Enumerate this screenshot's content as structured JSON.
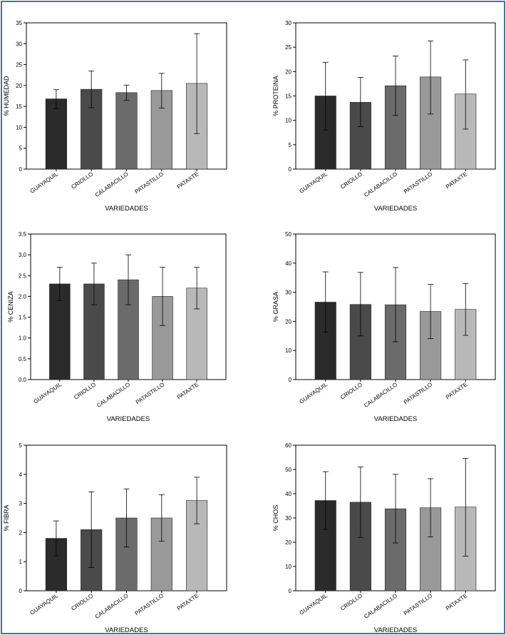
{
  "colors": [
    "#2b2b2b",
    "#4a4a4a",
    "#6b6b6b",
    "#999999",
    "#b8b8b8"
  ],
  "chart_data": [
    {
      "type": "bar",
      "categories": [
        "GUAYAQUIL",
        "CRIOLLO",
        "CALABACILLO",
        "PATASTILLO",
        "PATAXTE"
      ],
      "values": [
        16.8,
        19.1,
        18.3,
        18.8,
        20.5
      ],
      "error_low": [
        14.5,
        14.7,
        16.5,
        14.6,
        8.5
      ],
      "error_high": [
        19.0,
        23.5,
        20.1,
        22.9,
        32.4
      ],
      "xlabel": "VARIEDADES",
      "ylabel": "% HUMEDAD",
      "ylim": [
        0,
        35
      ],
      "yticks": [
        0,
        5,
        10,
        15,
        20,
        25,
        30,
        35
      ],
      "ytick_labels": [
        "0",
        "5",
        "10",
        "15",
        "20",
        "25",
        "30",
        "35"
      ]
    },
    {
      "type": "bar",
      "categories": [
        "GUAYAQUIL",
        "CRIOLLO",
        "CALABACILLO",
        "PATASTILLO",
        "PATAXTE"
      ],
      "values": [
        15.0,
        13.7,
        17.1,
        18.9,
        15.4
      ],
      "error_low": [
        8.0,
        8.7,
        11.0,
        11.3,
        8.2
      ],
      "error_high": [
        21.9,
        18.8,
        23.2,
        26.3,
        22.4
      ],
      "xlabel": "VARIEDADES",
      "ylabel": "% PROTEINA",
      "ylim": [
        0,
        30
      ],
      "yticks": [
        0,
        5,
        10,
        15,
        20,
        25,
        30
      ],
      "ytick_labels": [
        "0",
        "5",
        "10",
        "15",
        "20",
        "25",
        "30"
      ]
    },
    {
      "type": "bar",
      "categories": [
        "GUAYAQUIL",
        "CRIOLLO",
        "CALABACILLO",
        "PATASTILLO",
        "PATAXTE"
      ],
      "values": [
        2.3,
        2.3,
        2.4,
        2.0,
        2.2
      ],
      "error_low": [
        1.9,
        1.8,
        1.8,
        1.3,
        1.7
      ],
      "error_high": [
        2.7,
        2.8,
        3.0,
        2.7,
        2.7
      ],
      "xlabel": "VARIEDADES",
      "ylabel": "% CENIZA",
      "ylim": [
        0,
        3.5
      ],
      "yticks": [
        0,
        0.5,
        1.0,
        1.5,
        2.0,
        2.5,
        3.0,
        3.5
      ],
      "ytick_labels": [
        "0.0",
        "0.5",
        "1.0",
        "1.5",
        "2.0",
        "2.5",
        "3.0",
        "3.5"
      ]
    },
    {
      "type": "bar",
      "categories": [
        "GUAYAQUIL",
        "CRIOLLO",
        "CALABACILLO",
        "PATASTILLO",
        "PATAXTE"
      ],
      "values": [
        26.6,
        25.8,
        25.7,
        23.4,
        24.1
      ],
      "error_low": [
        16.3,
        15.0,
        13.0,
        14.1,
        15.2
      ],
      "error_high": [
        37.0,
        36.8,
        38.5,
        32.7,
        33.0
      ],
      "xlabel": "VARIEDADES",
      "ylabel": "% GRASA",
      "ylim": [
        0,
        50
      ],
      "yticks": [
        0,
        10,
        20,
        30,
        40,
        50
      ],
      "ytick_labels": [
        "0",
        "10",
        "20",
        "30",
        "40",
        "50"
      ]
    },
    {
      "type": "bar",
      "categories": [
        "GUAYAQUIL",
        "CRIOLLO",
        "CALABACILLO",
        "PATASTILLO",
        "PATAXTE"
      ],
      "values": [
        1.8,
        2.1,
        2.5,
        2.5,
        3.1
      ],
      "error_low": [
        1.2,
        0.8,
        1.5,
        1.7,
        2.3
      ],
      "error_high": [
        2.4,
        3.4,
        3.5,
        3.3,
        3.9
      ],
      "xlabel": "VARIEDADES",
      "ylabel": "% FIBRA",
      "ylim": [
        0,
        5
      ],
      "yticks": [
        0,
        1,
        2,
        3,
        4,
        5
      ],
      "ytick_labels": [
        "0",
        "1",
        "2",
        "3",
        "4",
        "5"
      ]
    },
    {
      "type": "bar",
      "categories": [
        "GUAYAQUIL",
        "CRIOLLO",
        "CALABACILLO",
        "PATASTILLO",
        "PATAXTE"
      ],
      "values": [
        37.2,
        36.5,
        33.8,
        34.2,
        34.5
      ],
      "error_low": [
        25.3,
        22.0,
        19.7,
        22.2,
        14.3
      ],
      "error_high": [
        49.1,
        51.0,
        48.0,
        46.2,
        54.6
      ],
      "xlabel": "VARIEDADES",
      "ylabel": "% CHOS",
      "ylim": [
        0,
        60
      ],
      "yticks": [
        0,
        10,
        20,
        30,
        40,
        50,
        60
      ],
      "ytick_labels": [
        "0",
        "10",
        "20",
        "30",
        "40",
        "50",
        "60"
      ]
    }
  ]
}
